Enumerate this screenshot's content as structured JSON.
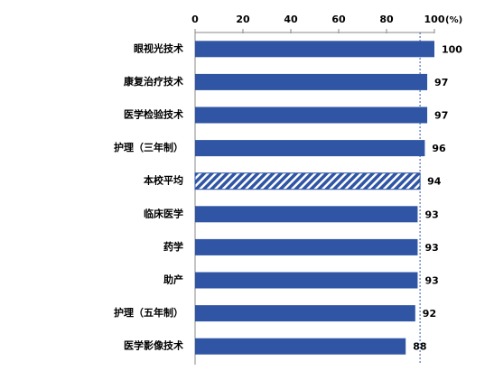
{
  "chart_data": {
    "type": "barh",
    "categories": [
      "眼视光技术",
      "康复治疗技术",
      "医学检验技术",
      "护理（三年制）",
      "本校平均",
      "临床医学",
      "药学",
      "助产",
      "护理（五年制）",
      "医学影像技术"
    ],
    "values": [
      100,
      97,
      97,
      96,
      94,
      93,
      93,
      93,
      92,
      88
    ],
    "color": "#2f55a4",
    "hatched": "本校平均",
    "reference_line": 94,
    "x_label": "(%)",
    "xlim": [
      0,
      100
    ],
    "xticks": [
      0,
      20,
      40,
      60,
      80,
      100
    ]
  }
}
